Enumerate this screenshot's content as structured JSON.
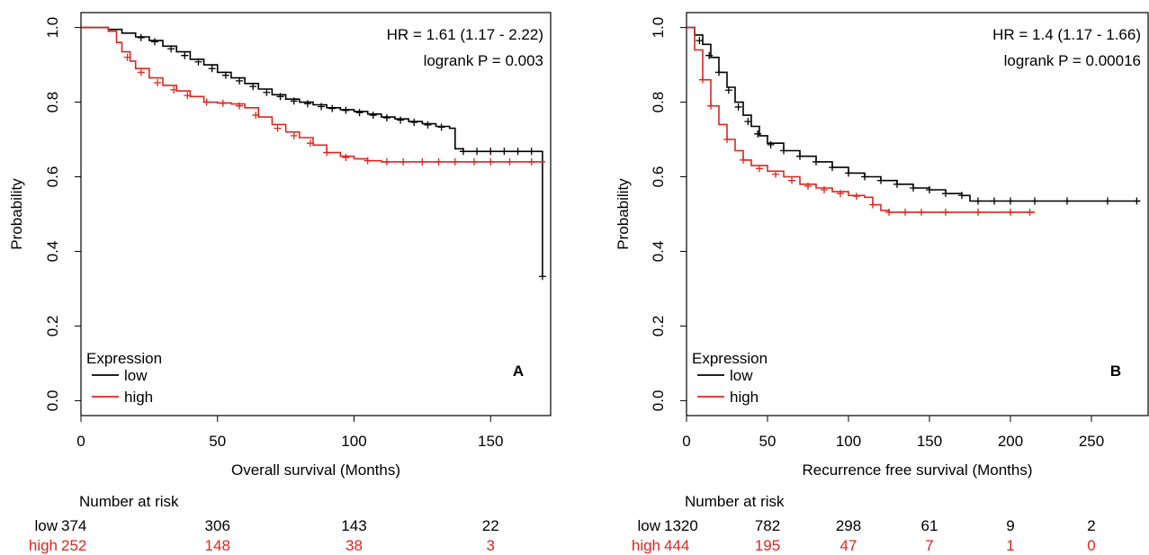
{
  "chart_data": [
    {
      "type": "line",
      "panel_label": "A",
      "annotation": [
        "HR = 1.61 (1.17 - 2.22)",
        "logrank P = 0.003"
      ],
      "xlabel": "Overall survival (Months)",
      "ylabel": "Probability",
      "xlim": [
        0,
        172
      ],
      "ylim": [
        -0.04,
        1.04
      ],
      "xticks": [
        "0",
        "50",
        "100",
        "150"
      ],
      "xtick_values": [
        0,
        50,
        100,
        150
      ],
      "yticks": [
        "0.0",
        "0.2",
        "0.4",
        "0.6",
        "0.8",
        "1.0"
      ],
      "ytick_values": [
        0,
        0.2,
        0.4,
        0.6,
        0.8,
        1.0
      ],
      "legend": {
        "title": "Expression",
        "position": "bottom-left",
        "entries": [
          "low",
          "high"
        ]
      },
      "series": [
        {
          "name": "low",
          "color": "#000000",
          "x": [
            0,
            5,
            10,
            15,
            20,
            25,
            30,
            35,
            40,
            45,
            50,
            55,
            60,
            65,
            70,
            75,
            80,
            85,
            90,
            95,
            100,
            105,
            110,
            115,
            120,
            125,
            130,
            135,
            137,
            140,
            145,
            150,
            155,
            160,
            165,
            169,
            169
          ],
          "y": [
            1.0,
            1.0,
            0.995,
            0.985,
            0.975,
            0.965,
            0.95,
            0.935,
            0.915,
            0.9,
            0.88,
            0.865,
            0.85,
            0.835,
            0.82,
            0.808,
            0.8,
            0.793,
            0.785,
            0.78,
            0.775,
            0.768,
            0.76,
            0.755,
            0.748,
            0.742,
            0.735,
            0.73,
            0.675,
            0.668,
            0.668,
            0.668,
            0.668,
            0.668,
            0.668,
            0.668,
            0.333
          ]
        },
        {
          "name": "high",
          "color": "#e0241f",
          "x": [
            0,
            5,
            10,
            13,
            15,
            18,
            20,
            25,
            30,
            35,
            40,
            45,
            50,
            55,
            60,
            65,
            70,
            75,
            80,
            85,
            90,
            95,
            100,
            105,
            110,
            120,
            130,
            140,
            150,
            160,
            170
          ],
          "y": [
            1.0,
            1.0,
            0.99,
            0.96,
            0.935,
            0.91,
            0.89,
            0.865,
            0.845,
            0.83,
            0.815,
            0.8,
            0.798,
            0.795,
            0.785,
            0.76,
            0.74,
            0.72,
            0.705,
            0.685,
            0.665,
            0.655,
            0.648,
            0.643,
            0.64,
            0.64,
            0.64,
            0.64,
            0.64,
            0.64,
            0.64
          ]
        }
      ],
      "censor_marks": {
        "low": [
          [
            22,
            0.973
          ],
          [
            27,
            0.962
          ],
          [
            33,
            0.943
          ],
          [
            38,
            0.925
          ],
          [
            43,
            0.908
          ],
          [
            48,
            0.89
          ],
          [
            53,
            0.872
          ],
          [
            58,
            0.857
          ],
          [
            63,
            0.842
          ],
          [
            68,
            0.826
          ],
          [
            73,
            0.815
          ],
          [
            78,
            0.803
          ],
          [
            83,
            0.796
          ],
          [
            88,
            0.788
          ],
          [
            92,
            0.783
          ],
          [
            97,
            0.778
          ],
          [
            102,
            0.772
          ],
          [
            107,
            0.765
          ],
          [
            112,
            0.758
          ],
          [
            117,
            0.752
          ],
          [
            122,
            0.746
          ],
          [
            127,
            0.739
          ],
          [
            132,
            0.733
          ],
          [
            140,
            0.668
          ],
          [
            145,
            0.668
          ],
          [
            150,
            0.668
          ],
          [
            155,
            0.668
          ],
          [
            160,
            0.668
          ],
          [
            165,
            0.668
          ],
          [
            169,
            0.333
          ]
        ],
        "high": [
          [
            17,
            0.92
          ],
          [
            22,
            0.88
          ],
          [
            28,
            0.852
          ],
          [
            34,
            0.833
          ],
          [
            39,
            0.818
          ],
          [
            46,
            0.8
          ],
          [
            52,
            0.797
          ],
          [
            58,
            0.79
          ],
          [
            64,
            0.765
          ],
          [
            72,
            0.73
          ],
          [
            78,
            0.71
          ],
          [
            84,
            0.69
          ],
          [
            90,
            0.665
          ],
          [
            97,
            0.652
          ],
          [
            105,
            0.643
          ],
          [
            112,
            0.64
          ],
          [
            118,
            0.64
          ],
          [
            125,
            0.64
          ],
          [
            131,
            0.64
          ],
          [
            137,
            0.64
          ],
          [
            144,
            0.64
          ],
          [
            150,
            0.64
          ],
          [
            157,
            0.64
          ],
          [
            165,
            0.64
          ]
        ]
      },
      "number_at_risk": {
        "title": "Number at risk",
        "times": [
          0,
          50,
          100,
          150
        ],
        "rows": [
          {
            "label": "low",
            "color": "#000000",
            "values": [
              "374",
              "306",
              "143",
              "22"
            ]
          },
          {
            "label": "high",
            "color": "#e0241f",
            "values": [
              "252",
              "148",
              "38",
              "3"
            ]
          }
        ]
      }
    },
    {
      "type": "line",
      "panel_label": "B",
      "annotation": [
        "HR = 1.4 (1.17 - 1.66)",
        "logrank P = 0.00016"
      ],
      "xlabel": "Recurrence free survival (Months)",
      "ylabel": "Probability",
      "xlim": [
        0,
        285
      ],
      "ylim": [
        -0.04,
        1.04
      ],
      "xticks": [
        "0",
        "50",
        "100",
        "150",
        "200",
        "250"
      ],
      "xtick_values": [
        0,
        50,
        100,
        150,
        200,
        250
      ],
      "yticks": [
        "0.0",
        "0.2",
        "0.4",
        "0.6",
        "0.8",
        "1.0"
      ],
      "ytick_values": [
        0,
        0.2,
        0.4,
        0.6,
        0.8,
        1.0
      ],
      "legend": {
        "title": "Expression",
        "position": "bottom-left",
        "entries": [
          "low",
          "high"
        ]
      },
      "series": [
        {
          "name": "low",
          "color": "#000000",
          "x": [
            0,
            5,
            10,
            15,
            20,
            25,
            30,
            35,
            40,
            45,
            50,
            60,
            70,
            80,
            90,
            100,
            110,
            120,
            130,
            140,
            150,
            160,
            170,
            175,
            180,
            200,
            220,
            240,
            260,
            280
          ],
          "y": [
            1.0,
            0.98,
            0.955,
            0.92,
            0.88,
            0.84,
            0.8,
            0.765,
            0.735,
            0.71,
            0.69,
            0.67,
            0.655,
            0.64,
            0.625,
            0.61,
            0.6,
            0.59,
            0.58,
            0.57,
            0.565,
            0.555,
            0.55,
            0.535,
            0.535,
            0.535,
            0.535,
            0.535,
            0.535,
            0.535
          ]
        },
        {
          "name": "high",
          "color": "#e0241f",
          "x": [
            0,
            5,
            10,
            15,
            20,
            25,
            30,
            35,
            40,
            50,
            60,
            70,
            80,
            90,
            100,
            110,
            115,
            120,
            125,
            130,
            150,
            170,
            190,
            215
          ],
          "y": [
            1.0,
            0.94,
            0.86,
            0.79,
            0.74,
            0.7,
            0.67,
            0.645,
            0.63,
            0.615,
            0.6,
            0.58,
            0.57,
            0.56,
            0.55,
            0.545,
            0.525,
            0.51,
            0.505,
            0.505,
            0.505,
            0.505,
            0.505,
            0.505
          ]
        }
      ],
      "censor_marks": {
        "low": [
          [
            8,
            0.965
          ],
          [
            14,
            0.925
          ],
          [
            20,
            0.88
          ],
          [
            26,
            0.832
          ],
          [
            32,
            0.787
          ],
          [
            38,
            0.748
          ],
          [
            44,
            0.715
          ],
          [
            52,
            0.686
          ],
          [
            60,
            0.67
          ],
          [
            70,
            0.655
          ],
          [
            80,
            0.64
          ],
          [
            90,
            0.625
          ],
          [
            100,
            0.61
          ],
          [
            110,
            0.6
          ],
          [
            120,
            0.59
          ],
          [
            130,
            0.58
          ],
          [
            140,
            0.57
          ],
          [
            150,
            0.565
          ],
          [
            160,
            0.555
          ],
          [
            170,
            0.55
          ],
          [
            180,
            0.535
          ],
          [
            190,
            0.535
          ],
          [
            200,
            0.535
          ],
          [
            215,
            0.535
          ],
          [
            235,
            0.535
          ],
          [
            260,
            0.535
          ],
          [
            278,
            0.535
          ]
        ],
        "high": [
          [
            10,
            0.86
          ],
          [
            15,
            0.79
          ],
          [
            25,
            0.7
          ],
          [
            35,
            0.645
          ],
          [
            45,
            0.622
          ],
          [
            55,
            0.607
          ],
          [
            65,
            0.59
          ],
          [
            75,
            0.575
          ],
          [
            85,
            0.565
          ],
          [
            95,
            0.555
          ],
          [
            105,
            0.548
          ],
          [
            115,
            0.525
          ],
          [
            125,
            0.505
          ],
          [
            135,
            0.505
          ],
          [
            145,
            0.505
          ],
          [
            160,
            0.505
          ],
          [
            180,
            0.505
          ],
          [
            200,
            0.505
          ],
          [
            212,
            0.505
          ]
        ]
      },
      "number_at_risk": {
        "title": "Number at risk",
        "times": [
          0,
          50,
          100,
          150,
          200,
          250
        ],
        "rows": [
          {
            "label": "low",
            "color": "#000000",
            "values": [
              "1320",
              "782",
              "298",
              "61",
              "9",
              "2"
            ]
          },
          {
            "label": "high",
            "color": "#e0241f",
            "values": [
              "444",
              "195",
              "47",
              "7",
              "1",
              "0"
            ]
          }
        ]
      }
    }
  ]
}
